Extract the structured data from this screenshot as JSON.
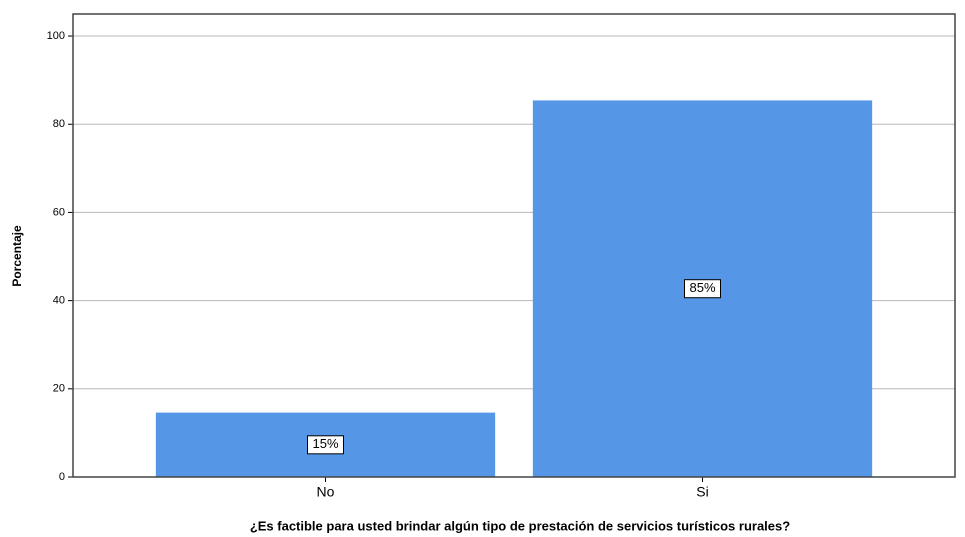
{
  "chart_data": {
    "type": "bar",
    "x_label": "¿Es factible para usted brindar algún tipo de prestación de servicios turísticos rurales?",
    "y_label": "Porcentaje",
    "categories": [
      "No",
      "Si"
    ],
    "values": [
      14.6,
      85.4
    ],
    "value_labels": [
      "15%",
      "85%"
    ],
    "color": "#5596e6",
    "ylim": [
      0,
      105
    ],
    "yticks": [
      0,
      20,
      40,
      60,
      80,
      100
    ],
    "grid": true
  }
}
